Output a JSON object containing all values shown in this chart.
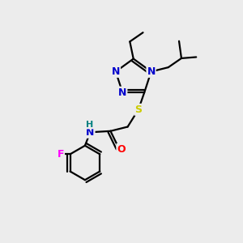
{
  "background_color": "#ececec",
  "atom_colors": {
    "C": "#000000",
    "N": "#0000cc",
    "O": "#ff0000",
    "S": "#cccc00",
    "F": "#ff00ff",
    "H": "#008080"
  },
  "bond_color": "#000000",
  "font_size_atom": 9
}
